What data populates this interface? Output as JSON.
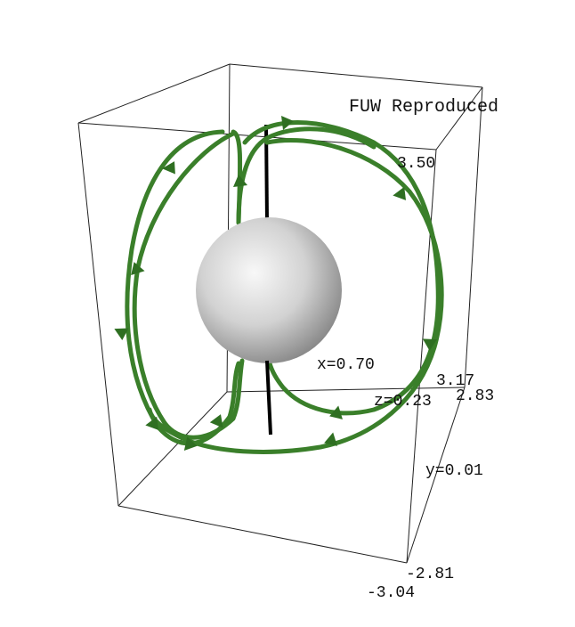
{
  "title": "FUW Reproduced",
  "labels": {
    "z_top": "3.50",
    "x_coord": "x=0.70",
    "x_tick_a": "3.17",
    "x_tick_b": "2.83",
    "z_coord": "z=0.23",
    "y_coord": "y=0.01",
    "y_tick_a": "-2.81",
    "y_tick_b": "-3.04"
  },
  "colors": {
    "field_line": "#3a7f2a",
    "arrow": "#2f6f22",
    "box": "#222222",
    "axis": "#000000",
    "sphere_light": "#f8f8f8",
    "sphere_dark": "#8a8a8a"
  }
}
